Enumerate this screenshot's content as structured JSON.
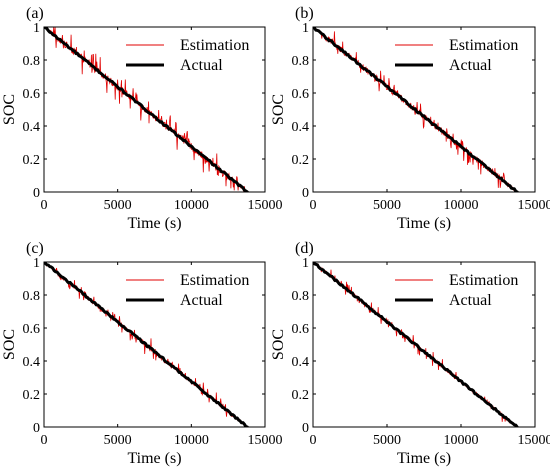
{
  "chart_data": [
    {
      "type": "line",
      "panel_label": "(a)",
      "xlabel": "Time (s)",
      "ylabel": "SOC",
      "xlim": [
        0,
        15000
      ],
      "ylim": [
        0,
        1
      ],
      "xticks": [
        0,
        5000,
        10000,
        15000
      ],
      "yticks": [
        0,
        0.2,
        0.4,
        0.6,
        0.8,
        1
      ],
      "legend_position": "top-right",
      "grid": false,
      "series": [
        {
          "name": "Estimation",
          "color": "#e00000",
          "noise": 0.06,
          "x": [
            0,
            13800
          ],
          "y": [
            1,
            0
          ]
        },
        {
          "name": "Actual",
          "color": "#000000",
          "x": [
            0,
            13800
          ],
          "y": [
            1,
            0
          ]
        }
      ]
    },
    {
      "type": "line",
      "panel_label": "(b)",
      "xlabel": "Time (s)",
      "ylabel": "SOC",
      "xlim": [
        0,
        15000
      ],
      "ylim": [
        0,
        1
      ],
      "xticks": [
        0,
        5000,
        10000,
        15000
      ],
      "yticks": [
        0,
        0.2,
        0.4,
        0.6,
        0.8,
        1
      ],
      "legend_position": "top-right",
      "grid": false,
      "series": [
        {
          "name": "Estimation",
          "color": "#e00000",
          "noise": 0.055,
          "x": [
            0,
            13800
          ],
          "y": [
            1,
            0
          ]
        },
        {
          "name": "Actual",
          "color": "#000000",
          "x": [
            0,
            13800
          ],
          "y": [
            1,
            0
          ]
        }
      ]
    },
    {
      "type": "line",
      "panel_label": "(c)",
      "xlabel": "Time (s)",
      "ylabel": "SOC",
      "xlim": [
        0,
        15000
      ],
      "ylim": [
        0,
        1
      ],
      "xticks": [
        0,
        5000,
        10000,
        15000
      ],
      "yticks": [
        0,
        0.2,
        0.4,
        0.6,
        0.8,
        1
      ],
      "legend_position": "top-right",
      "grid": false,
      "series": [
        {
          "name": "Estimation",
          "color": "#e00000",
          "noise": 0.04,
          "x": [
            0,
            13800
          ],
          "y": [
            1,
            0
          ]
        },
        {
          "name": "Actual",
          "color": "#000000",
          "x": [
            0,
            13800
          ],
          "y": [
            1,
            0
          ]
        }
      ]
    },
    {
      "type": "line",
      "panel_label": "(d)",
      "xlabel": "Time (s)",
      "ylabel": "SOC",
      "xlim": [
        0,
        15000
      ],
      "ylim": [
        0,
        1
      ],
      "xticks": [
        0,
        5000,
        10000,
        15000
      ],
      "yticks": [
        0,
        0.2,
        0.4,
        0.6,
        0.8,
        1
      ],
      "legend_position": "top-right",
      "grid": false,
      "series": [
        {
          "name": "Estimation",
          "color": "#e00000",
          "noise": 0.03,
          "x": [
            0,
            13800
          ],
          "y": [
            1,
            0
          ]
        },
        {
          "name": "Actual",
          "color": "#000000",
          "x": [
            0,
            13800
          ],
          "y": [
            1,
            0
          ]
        }
      ]
    }
  ]
}
